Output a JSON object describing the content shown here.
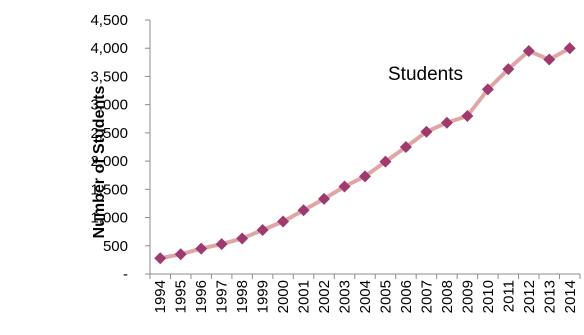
{
  "chart_data": {
    "type": "line",
    "title": "",
    "xlabel": "",
    "ylabel": "Number of Students",
    "ylim": [
      0,
      4500
    ],
    "yticks": [
      {
        "value": 0,
        "label": "-"
      },
      {
        "value": 500,
        "label": "500"
      },
      {
        "value": 1000,
        "label": "1,000"
      },
      {
        "value": 1500,
        "label": "1,500"
      },
      {
        "value": 2000,
        "label": "2,000"
      },
      {
        "value": 2500,
        "label": "2,500"
      },
      {
        "value": 3000,
        "label": "3,000"
      },
      {
        "value": 3500,
        "label": "3,500"
      },
      {
        "value": 4000,
        "label": "4,000"
      },
      {
        "value": 4500,
        "label": "4,500"
      }
    ],
    "categories": [
      "1994",
      "1995",
      "1996",
      "1997",
      "1998",
      "1999",
      "2000",
      "2001",
      "2002",
      "2003",
      "2004",
      "2005",
      "2006",
      "2007",
      "2008",
      "2009",
      "2010",
      "2011",
      "2012",
      "2013",
      "2014"
    ],
    "series": [
      {
        "name": "Students",
        "values": [
          280,
          350,
          450,
          530,
          630,
          780,
          930,
          1130,
          1330,
          1550,
          1730,
          1990,
          2250,
          2520,
          2680,
          2800,
          3270,
          3630,
          3950,
          3800,
          4000
        ],
        "line_color": "#e0a6a6",
        "marker_color": "#9e3a6e"
      }
    ],
    "grid": false,
    "legend": "none"
  }
}
